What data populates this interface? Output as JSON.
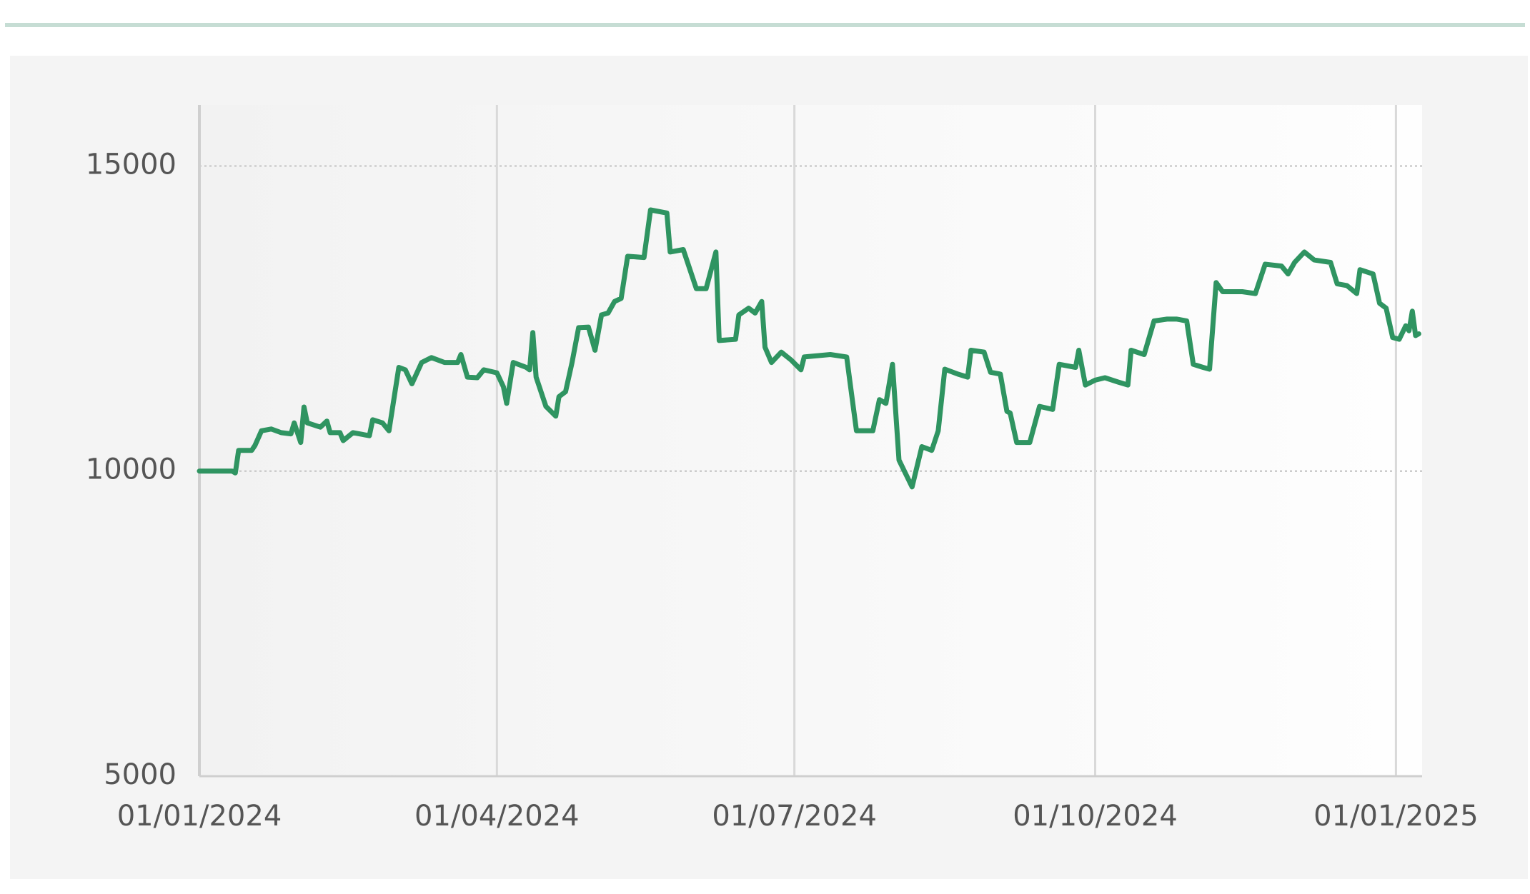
{
  "chart_data": {
    "type": "line",
    "x": [
      "2024-01-01",
      "2024-01-11",
      "2024-01-12",
      "2024-01-13",
      "2024-01-17",
      "2024-01-18",
      "2024-01-20",
      "2024-01-23",
      "2024-01-26",
      "2024-01-29",
      "2024-01-30",
      "2024-02-01",
      "2024-02-02",
      "2024-02-03",
      "2024-02-07",
      "2024-02-09",
      "2024-02-10",
      "2024-02-13",
      "2024-02-14",
      "2024-02-17",
      "2024-02-22",
      "2024-02-23",
      "2024-02-26",
      "2024-02-28",
      "2024-03-02",
      "2024-03-04",
      "2024-03-06",
      "2024-03-09",
      "2024-03-12",
      "2024-03-16",
      "2024-03-20",
      "2024-03-21",
      "2024-03-23",
      "2024-03-26",
      "2024-03-28",
      "2024-04-01",
      "2024-04-03",
      "2024-04-04",
      "2024-04-06",
      "2024-04-10",
      "2024-04-11",
      "2024-04-12",
      "2024-04-13",
      "2024-04-16",
      "2024-04-19",
      "2024-04-20",
      "2024-04-22",
      "2024-04-24",
      "2024-04-26",
      "2024-04-29",
      "2024-05-01",
      "2024-05-03",
      "2024-05-05",
      "2024-05-07",
      "2024-05-09",
      "2024-05-11",
      "2024-05-16",
      "2024-05-18",
      "2024-05-23",
      "2024-05-24",
      "2024-05-28",
      "2024-06-01",
      "2024-06-04",
      "2024-06-07",
      "2024-06-08",
      "2024-06-13",
      "2024-06-14",
      "2024-06-17",
      "2024-06-19",
      "2024-06-21",
      "2024-06-22",
      "2024-06-24",
      "2024-06-27",
      "2024-06-30",
      "2024-07-03",
      "2024-07-04",
      "2024-07-12",
      "2024-07-17",
      "2024-07-18",
      "2024-07-20",
      "2024-07-25",
      "2024-07-27",
      "2024-07-29",
      "2024-07-31",
      "2024-08-02",
      "2024-08-06",
      "2024-08-09",
      "2024-08-12",
      "2024-08-14",
      "2024-08-16",
      "2024-08-20",
      "2024-08-23",
      "2024-08-24",
      "2024-08-28",
      "2024-08-30",
      "2024-09-02",
      "2024-09-04",
      "2024-09-05",
      "2024-09-07",
      "2024-09-11",
      "2024-09-14",
      "2024-09-18",
      "2024-09-20",
      "2024-09-25",
      "2024-09-26",
      "2024-09-28",
      "2024-10-01",
      "2024-10-04",
      "2024-10-08",
      "2024-10-11",
      "2024-10-12",
      "2024-10-16",
      "2024-10-19",
      "2024-10-23",
      "2024-10-26",
      "2024-10-29",
      "2024-10-31",
      "2024-11-03",
      "2024-11-05",
      "2024-11-07",
      "2024-11-09",
      "2024-11-15",
      "2024-11-19",
      "2024-11-22",
      "2024-11-27",
      "2024-11-29",
      "2024-12-01",
      "2024-12-04",
      "2024-12-07",
      "2024-12-12",
      "2024-12-14",
      "2024-12-17",
      "2024-12-20",
      "2024-12-21",
      "2024-12-25",
      "2024-12-27",
      "2024-12-29",
      "2024-12-31",
      "2025-01-02",
      "2025-01-04",
      "2025-01-05",
      "2025-01-06",
      "2025-01-07",
      "2025-01-08"
    ],
    "values": [
      10000,
      10000,
      9970,
      10340,
      10340,
      10420,
      10660,
      10690,
      10630,
      10610,
      10790,
      10470,
      11050,
      10790,
      10720,
      10820,
      10630,
      10630,
      10500,
      10630,
      10580,
      10840,
      10790,
      10660,
      11700,
      11660,
      11430,
      11780,
      11860,
      11780,
      11780,
      11910,
      11540,
      11530,
      11660,
      11610,
      11380,
      11110,
      11780,
      11700,
      11660,
      12270,
      11540,
      11060,
      10900,
      11220,
      11300,
      11780,
      12350,
      12360,
      11980,
      12560,
      12590,
      12780,
      12830,
      13520,
      13500,
      14280,
      14230,
      13590,
      13630,
      12990,
      12990,
      13590,
      12140,
      12160,
      12560,
      12670,
      12590,
      12780,
      12030,
      11780,
      11950,
      11820,
      11660,
      11870,
      11910,
      11870,
      11460,
      10660,
      10660,
      11170,
      11110,
      11750,
      10180,
      9740,
      10400,
      10340,
      10660,
      11670,
      11590,
      11540,
      11980,
      11950,
      11620,
      11590,
      10980,
      10950,
      10470,
      10470,
      11060,
      11010,
      11750,
      11700,
      11980,
      11410,
      11490,
      11530,
      11460,
      11410,
      11980,
      11910,
      12460,
      12490,
      12490,
      12460,
      11750,
      11700,
      11670,
      13090,
      12940,
      12940,
      12910,
      13390,
      13360,
      13230,
      13420,
      13590,
      13460,
      13420,
      13070,
      13040,
      12910,
      13300,
      13230,
      12750,
      12670,
      12190,
      12160,
      12380,
      12300,
      12620,
      12220,
      12250
    ],
    "color": "#2f9461",
    "xlim": [
      "2024-01-01",
      "2025-01-09"
    ],
    "xticks": [
      {
        "value": "2024-01-01",
        "label": "01/01/2024"
      },
      {
        "value": "2024-04-01",
        "label": "01/04/2024"
      },
      {
        "value": "2024-07-01",
        "label": "01/07/2024"
      },
      {
        "value": "2024-10-01",
        "label": "01/10/2024"
      },
      {
        "value": "2025-01-01",
        "label": "01/01/2025"
      }
    ],
    "ylim": [
      5000,
      16000
    ],
    "yticks": [
      5000,
      10000,
      15000
    ],
    "grid": true
  }
}
